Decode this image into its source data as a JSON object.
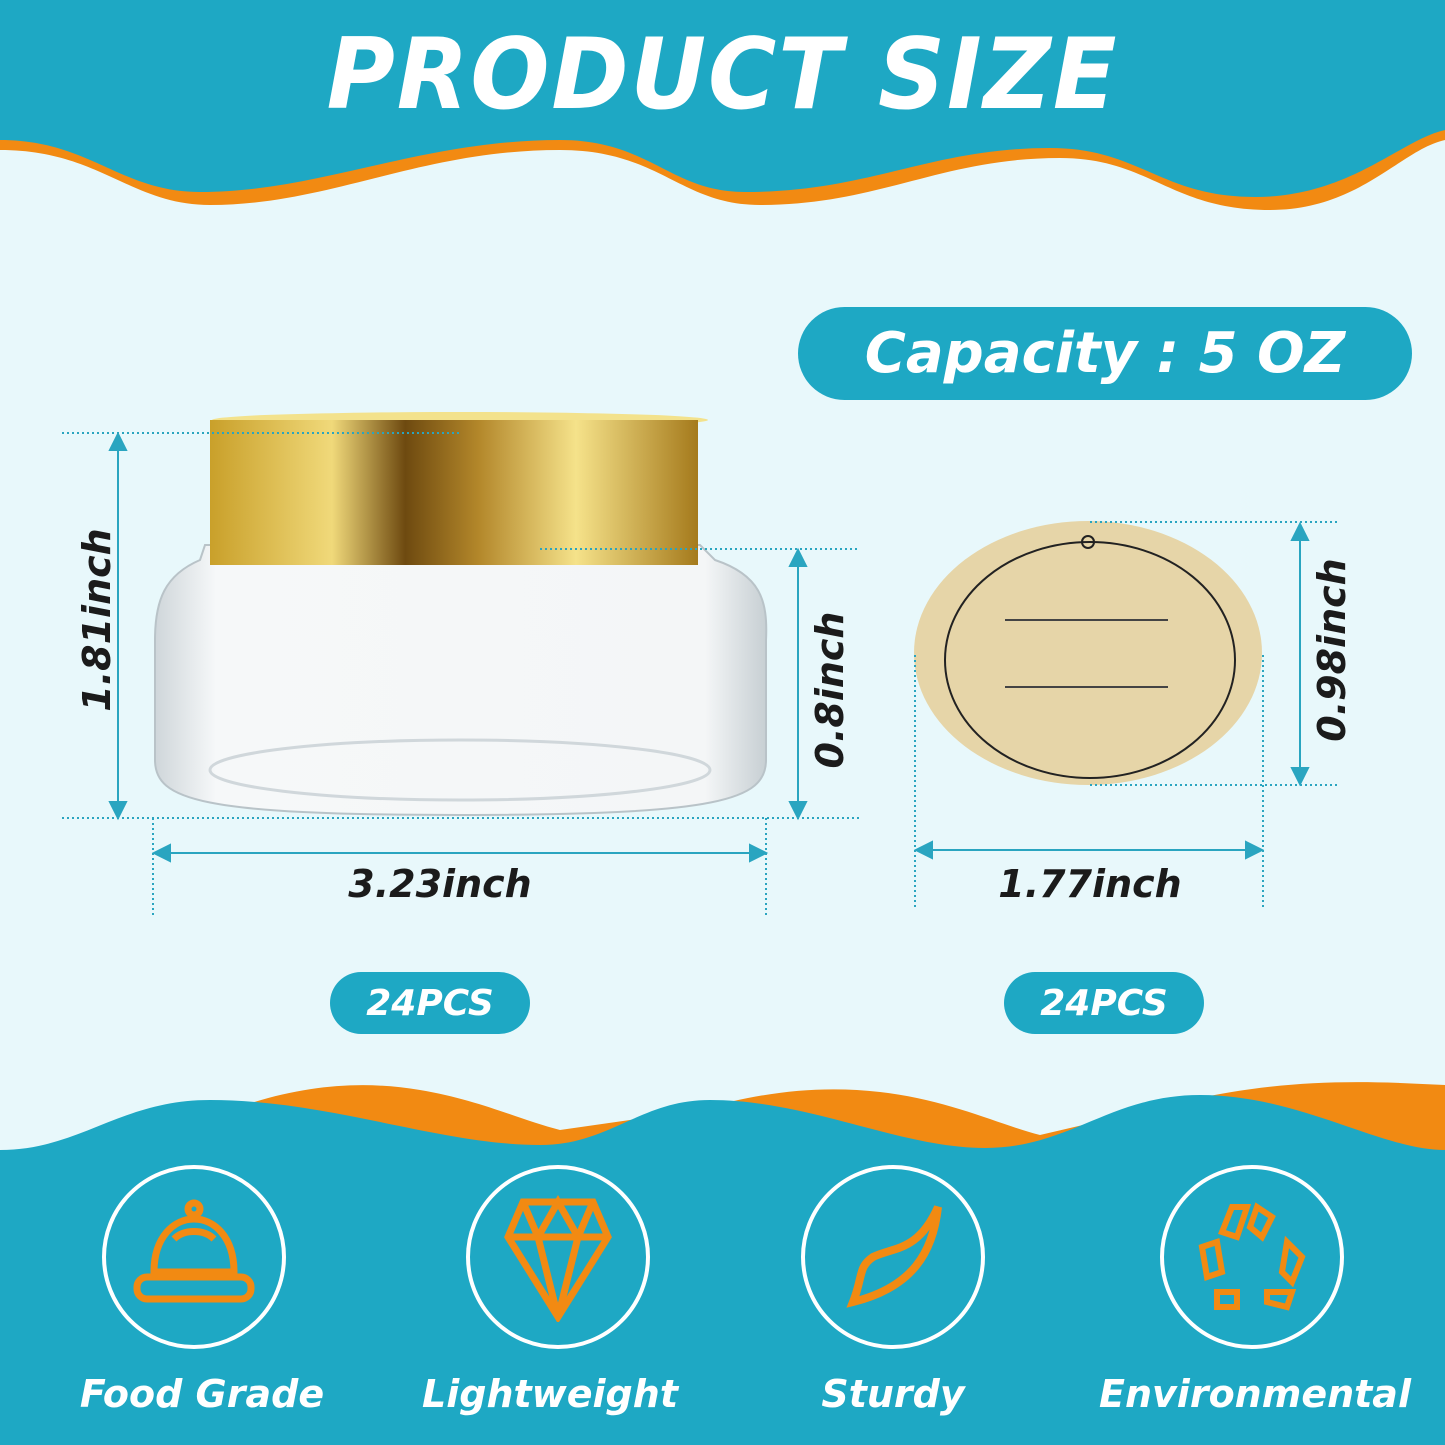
{
  "header": {
    "title": "PRODUCT SIZE"
  },
  "capacity": {
    "label": "Capacity : 5 OZ"
  },
  "jar": {
    "height_label": "1.81inch",
    "body_height_label": "0.8inch",
    "width_label": "3.23inch",
    "quantity": "24PCS"
  },
  "sticker": {
    "height_label": "0.98inch",
    "width_label": "1.77inch",
    "quantity": "24PCS"
  },
  "features": [
    {
      "label": "Food Grade",
      "icon": "cloche-icon"
    },
    {
      "label": "Lightweight",
      "icon": "diamond-icon"
    },
    {
      "label": "Sturdy",
      "icon": "leaf-icon"
    },
    {
      "label": "Environmental",
      "icon": "recycle-icon"
    }
  ],
  "colors": {
    "teal": "#1ea8c4",
    "orange": "#f28a12",
    "background": "#e8f8fb",
    "gold": "#c9a02a"
  }
}
